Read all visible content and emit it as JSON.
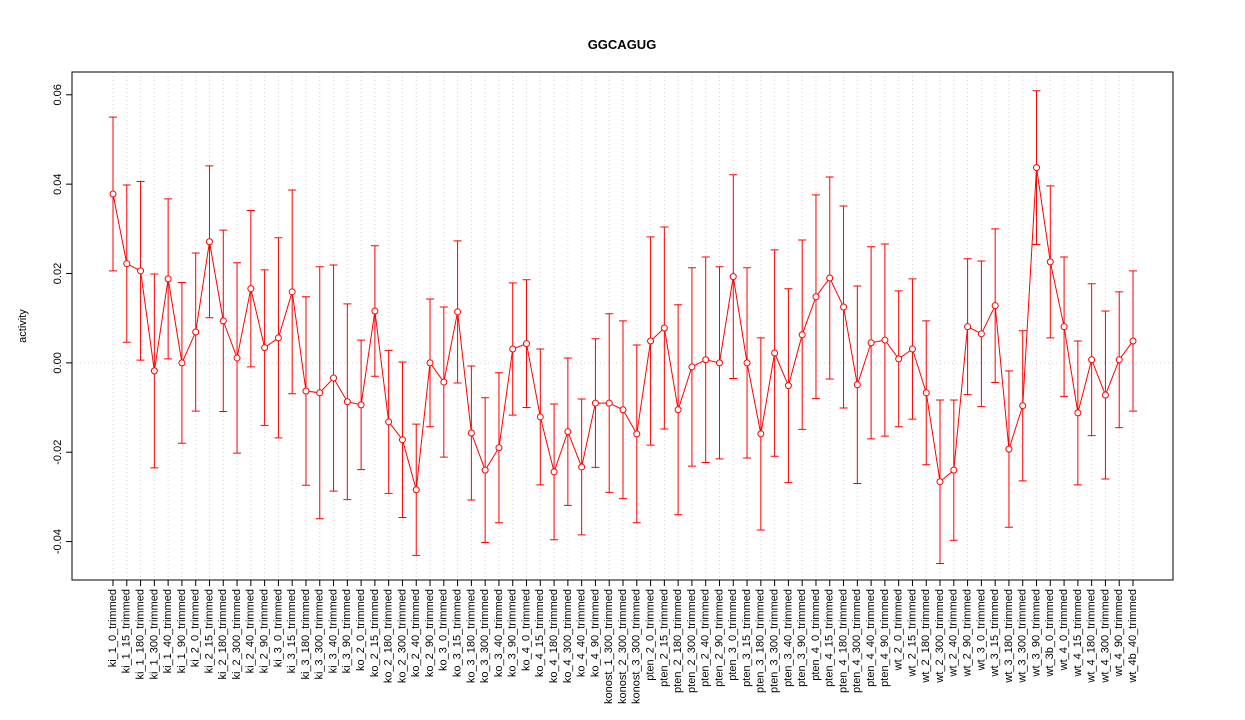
{
  "chart_data": {
    "type": "errorbar_line",
    "title": "GGCAGUG",
    "y_label": "activity",
    "categories": [
      "ki_1_0_trimmed",
      "ki_1_15_trimmed",
      "ki_1_180_trimmed",
      "ki_1_300_trimmed",
      "ki_1_40_trimmed",
      "ki_1_90_trimmed",
      "ki_2_0_trimmed",
      "ki_2_15_trimmed",
      "ki_2_180_trimmed",
      "ki_2_300_trimmed",
      "ki_2_40_trimmed",
      "ki_2_90_trimmed",
      "ki_3_0_trimmed",
      "ki_3_15_trimmed",
      "ki_3_180_trimmed",
      "ki_3_300_trimmed",
      "ki_3_40_trimmed",
      "ki_3_90_trimmed",
      "ko_2_0_trimmed",
      "ko_2_15_trimmed",
      "ko_2_180_trimmed",
      "ko_2_300_trimmed",
      "ko_2_40_trimmed",
      "ko_2_90_trimmed",
      "ko_3_0_trimmed",
      "ko_3_15_trimmed",
      "ko_3_180_trimmed",
      "ko_3_300_trimmed",
      "ko_3_40_trimmed",
      "ko_3_90_trimmed",
      "ko_4_0_trimmed",
      "ko_4_15_trimmed",
      "ko_4_180_trimmed",
      "ko_4_300_trimmed",
      "ko_4_40_trimmed",
      "ko_4_90_trimmed",
      "konost_1_300_trimmed",
      "konost_2_300_trimmed",
      "konost_3_300_trimmed",
      "pten_2_0_trimmed",
      "pten_2_15_trimmed",
      "pten_2_180_trimmed",
      "pten_2_300_trimmed",
      "pten_2_40_trimmed",
      "pten_2_90_trimmed",
      "pten_3_0_trimmed",
      "pten_3_15_trimmed",
      "pten_3_180_trimmed",
      "pten_3_300_trimmed",
      "pten_3_40_trimmed",
      "pten_3_90_trimmed",
      "pten_4_0_trimmed",
      "pten_4_15_trimmed",
      "pten_4_180_trimmed",
      "pten_4_300_trimmed",
      "pten_4_40_trimmed",
      "pten_4_90_trimmed",
      "wt_2_0_trimmed",
      "wt_2_15_trimmed",
      "wt_2_180_trimmed",
      "wt_2_300_trimmed",
      "wt_2_40_trimmed",
      "wt_2_90_trimmed",
      "wt_3_0_trimmed",
      "wt_3_15_trimmed",
      "wt_3_180_trimmed",
      "wt_3_300_trimmed",
      "wt_3_90_trimmed",
      "wt_3b_0_trimmed",
      "wt_4_0_trimmed",
      "wt_4_15_trimmed",
      "wt_4_180_trimmed",
      "wt_4_300_trimmed",
      "wt_4_90_trimmed",
      "wt_4b_40_trimmed"
    ],
    "values": [
      0.0378,
      0.0222,
      0.0206,
      -0.0018,
      0.0188,
      0.0,
      0.0069,
      0.0271,
      0.0094,
      0.0011,
      0.0166,
      0.0034,
      0.0056,
      0.0159,
      -0.0063,
      -0.0067,
      -0.0034,
      -0.0087,
      -0.0094,
      0.0116,
      -0.0132,
      -0.0172,
      -0.0284,
      0.0,
      -0.0043,
      0.0114,
      -0.0157,
      -0.024,
      -0.019,
      0.0031,
      0.0043,
      -0.0121,
      -0.0244,
      -0.0154,
      -0.0233,
      -0.009,
      -0.009,
      -0.0105,
      -0.0159,
      0.0049,
      0.0078,
      -0.0105,
      -0.0009,
      0.0007,
      0.0,
      0.0193,
      0.0,
      -0.0159,
      0.0022,
      -0.0051,
      0.0063,
      0.0148,
      0.019,
      0.0125,
      -0.0049,
      0.0045,
      0.0051,
      0.0009,
      0.0031,
      -0.0067,
      -0.0266,
      -0.024,
      0.0081,
      0.0065,
      0.0128,
      -0.0193,
      -0.0096,
      0.0437,
      0.0226,
      0.0081,
      -0.0112,
      0.0007,
      -0.0072,
      0.0007,
      0.0049
    ],
    "errors": [
      0.0172,
      0.0176,
      0.02,
      0.0217,
      0.0179,
      0.018,
      0.0177,
      0.017,
      0.0203,
      0.0213,
      0.0175,
      0.0174,
      0.0224,
      0.0228,
      0.0211,
      0.0282,
      0.0253,
      0.0219,
      0.0145,
      0.0146,
      0.016,
      0.0174,
      0.0147,
      0.0143,
      0.0168,
      0.0159,
      0.015,
      0.0162,
      0.0168,
      0.0148,
      0.0143,
      0.0152,
      0.0152,
      0.0165,
      0.0152,
      0.0144,
      0.02,
      0.0199,
      0.0199,
      0.0233,
      0.0226,
      0.0235,
      0.0222,
      0.023,
      0.0215,
      0.0228,
      0.0213,
      0.0215,
      0.0231,
      0.0217,
      0.0212,
      0.0228,
      0.0226,
      0.0226,
      0.0221,
      0.0215,
      0.0215,
      0.0152,
      0.0157,
      0.0161,
      0.0183,
      0.0157,
      0.0152,
      0.0163,
      0.0172,
      0.0175,
      0.0168,
      0.0172,
      0.017,
      0.0156,
      0.0161,
      0.017,
      0.0188,
      0.0152,
      0.0157
    ],
    "color": "#ff0000",
    "ylim": [
      -0.0486,
      0.0651
    ],
    "yticks": [
      -0.04,
      -0.02,
      {
        "value": 0,
        "label": "0.00"
      },
      0.02,
      0.04,
      0.06
    ],
    "reference_line": 0,
    "grid": "x"
  }
}
